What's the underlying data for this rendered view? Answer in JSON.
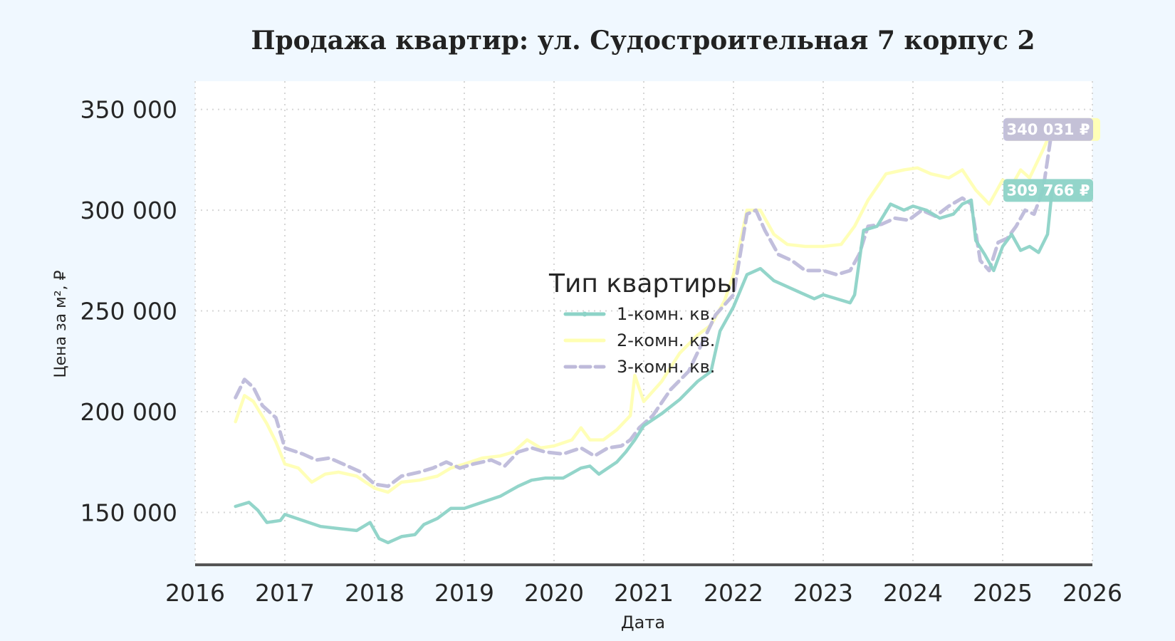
{
  "chart_data": {
    "type": "line",
    "title": "Продажа квартир: ул. Судостроительная 7 корпус 2",
    "xlabel": "Дата",
    "ylabel": "Цена за м², ₽",
    "xlim": [
      2016,
      2026
    ],
    "ylim": [
      124000,
      364000
    ],
    "x_ticks": [
      "2016",
      "2017",
      "2018",
      "2019",
      "2020",
      "2021",
      "2022",
      "2023",
      "2024",
      "2025",
      "2026"
    ],
    "y_ticks": [
      {
        "value": 150000,
        "label": "150 000"
      },
      {
        "value": 200000,
        "label": "200 000"
      },
      {
        "value": 250000,
        "label": "250 000"
      },
      {
        "value": 300000,
        "label": "300 000"
      },
      {
        "value": 350000,
        "label": "350 000"
      }
    ],
    "grid": true,
    "legend": {
      "title": "Тип квартиры",
      "placement": "center"
    },
    "series": [
      {
        "name": "1-комн. кв.",
        "color": "#8dd3c7",
        "dash": "solid",
        "marker": "dot",
        "points": [
          [
            2016.45,
            153000
          ],
          [
            2016.6,
            155000
          ],
          [
            2016.7,
            151000
          ],
          [
            2016.8,
            145000
          ],
          [
            2016.95,
            146000
          ],
          [
            2017.0,
            149000
          ],
          [
            2017.2,
            146000
          ],
          [
            2017.4,
            143000
          ],
          [
            2017.6,
            142000
          ],
          [
            2017.8,
            141000
          ],
          [
            2017.95,
            145000
          ],
          [
            2018.05,
            137000
          ],
          [
            2018.15,
            135000
          ],
          [
            2018.3,
            138000
          ],
          [
            2018.45,
            139000
          ],
          [
            2018.55,
            144000
          ],
          [
            2018.7,
            147000
          ],
          [
            2018.85,
            152000
          ],
          [
            2019.0,
            152000
          ],
          [
            2019.2,
            155000
          ],
          [
            2019.4,
            158000
          ],
          [
            2019.6,
            163000
          ],
          [
            2019.75,
            166000
          ],
          [
            2019.9,
            167000
          ],
          [
            2020.1,
            167000
          ],
          [
            2020.3,
            172000
          ],
          [
            2020.4,
            173000
          ],
          [
            2020.5,
            169000
          ],
          [
            2020.6,
            172000
          ],
          [
            2020.7,
            175000
          ],
          [
            2020.8,
            180000
          ],
          [
            2020.9,
            186000
          ],
          [
            2021.0,
            193000
          ],
          [
            2021.2,
            199000
          ],
          [
            2021.4,
            206000
          ],
          [
            2021.6,
            215000
          ],
          [
            2021.75,
            220000
          ],
          [
            2021.85,
            240000
          ],
          [
            2022.0,
            252000
          ],
          [
            2022.15,
            268000
          ],
          [
            2022.3,
            271000
          ],
          [
            2022.45,
            265000
          ],
          [
            2022.6,
            262000
          ],
          [
            2022.75,
            259000
          ],
          [
            2022.9,
            256000
          ],
          [
            2023.0,
            258000
          ],
          [
            2023.15,
            256000
          ],
          [
            2023.3,
            254000
          ],
          [
            2023.35,
            258000
          ],
          [
            2023.45,
            290000
          ],
          [
            2023.6,
            292000
          ],
          [
            2023.75,
            303000
          ],
          [
            2023.9,
            300000
          ],
          [
            2024.0,
            302000
          ],
          [
            2024.15,
            300000
          ],
          [
            2024.3,
            296000
          ],
          [
            2024.45,
            298000
          ],
          [
            2024.55,
            303000
          ],
          [
            2024.65,
            305000
          ],
          [
            2024.7,
            285000
          ],
          [
            2024.8,
            278000
          ],
          [
            2024.9,
            270000
          ],
          [
            2025.0,
            282000
          ],
          [
            2025.1,
            288000
          ],
          [
            2025.2,
            280000
          ],
          [
            2025.3,
            282000
          ],
          [
            2025.4,
            279000
          ],
          [
            2025.5,
            288000
          ],
          [
            2025.55,
            309766
          ]
        ],
        "last_label": "309 766 ₽"
      },
      {
        "name": "2-комн. кв.",
        "color": "#ffffb3",
        "dash": "solid",
        "marker": "none",
        "points": [
          [
            2016.45,
            195000
          ],
          [
            2016.55,
            208000
          ],
          [
            2016.65,
            205000
          ],
          [
            2016.8,
            194000
          ],
          [
            2016.9,
            185000
          ],
          [
            2017.0,
            174000
          ],
          [
            2017.15,
            172000
          ],
          [
            2017.3,
            165000
          ],
          [
            2017.45,
            169000
          ],
          [
            2017.6,
            170000
          ],
          [
            2017.8,
            168000
          ],
          [
            2018.0,
            162000
          ],
          [
            2018.15,
            160000
          ],
          [
            2018.3,
            165000
          ],
          [
            2018.5,
            166000
          ],
          [
            2018.7,
            168000
          ],
          [
            2018.85,
            172000
          ],
          [
            2019.0,
            174000
          ],
          [
            2019.2,
            177000
          ],
          [
            2019.4,
            178000
          ],
          [
            2019.55,
            180000
          ],
          [
            2019.7,
            186000
          ],
          [
            2019.85,
            182000
          ],
          [
            2020.0,
            183000
          ],
          [
            2020.2,
            186000
          ],
          [
            2020.3,
            192000
          ],
          [
            2020.4,
            186000
          ],
          [
            2020.55,
            186000
          ],
          [
            2020.7,
            191000
          ],
          [
            2020.85,
            198000
          ],
          [
            2020.9,
            218000
          ],
          [
            2021.0,
            205000
          ],
          [
            2021.2,
            215000
          ],
          [
            2021.4,
            229000
          ],
          [
            2021.6,
            238000
          ],
          [
            2021.75,
            243000
          ],
          [
            2021.9,
            255000
          ],
          [
            2022.0,
            268000
          ],
          [
            2022.15,
            300000
          ],
          [
            2022.3,
            300000
          ],
          [
            2022.45,
            288000
          ],
          [
            2022.6,
            283000
          ],
          [
            2022.8,
            282000
          ],
          [
            2023.0,
            282000
          ],
          [
            2023.2,
            283000
          ],
          [
            2023.35,
            292000
          ],
          [
            2023.5,
            305000
          ],
          [
            2023.7,
            318000
          ],
          [
            2023.9,
            320000
          ],
          [
            2024.05,
            321000
          ],
          [
            2024.2,
            318000
          ],
          [
            2024.4,
            316000
          ],
          [
            2024.55,
            320000
          ],
          [
            2024.7,
            310000
          ],
          [
            2024.85,
            303000
          ],
          [
            2025.0,
            315000
          ],
          [
            2025.1,
            312000
          ],
          [
            2025.2,
            320000
          ],
          [
            2025.3,
            316000
          ],
          [
            2025.45,
            330000
          ],
          [
            2025.55,
            340031
          ]
        ],
        "last_label": "340 031 ₽"
      },
      {
        "name": "3-комн. кв.",
        "color": "#bebada",
        "dash": "dashed",
        "marker": "none",
        "points": [
          [
            2016.45,
            207000
          ],
          [
            2016.55,
            216000
          ],
          [
            2016.65,
            212000
          ],
          [
            2016.75,
            203000
          ],
          [
            2016.9,
            197000
          ],
          [
            2017.0,
            182000
          ],
          [
            2017.2,
            179000
          ],
          [
            2017.35,
            176000
          ],
          [
            2017.5,
            177000
          ],
          [
            2017.7,
            173000
          ],
          [
            2017.85,
            170000
          ],
          [
            2018.0,
            164000
          ],
          [
            2018.15,
            163000
          ],
          [
            2018.3,
            168000
          ],
          [
            2018.5,
            170000
          ],
          [
            2018.65,
            172000
          ],
          [
            2018.8,
            175000
          ],
          [
            2018.95,
            172000
          ],
          [
            2019.1,
            174000
          ],
          [
            2019.3,
            176000
          ],
          [
            2019.45,
            173000
          ],
          [
            2019.6,
            180000
          ],
          [
            2019.75,
            182000
          ],
          [
            2019.9,
            180000
          ],
          [
            2020.1,
            179000
          ],
          [
            2020.3,
            182000
          ],
          [
            2020.45,
            178000
          ],
          [
            2020.6,
            182000
          ],
          [
            2020.75,
            183000
          ],
          [
            2020.85,
            186000
          ],
          [
            2020.95,
            192000
          ],
          [
            2021.1,
            198000
          ],
          [
            2021.3,
            211000
          ],
          [
            2021.5,
            220000
          ],
          [
            2021.65,
            234000
          ],
          [
            2021.8,
            248000
          ],
          [
            2022.0,
            258000
          ],
          [
            2022.15,
            298000
          ],
          [
            2022.25,
            300000
          ],
          [
            2022.35,
            290000
          ],
          [
            2022.5,
            278000
          ],
          [
            2022.65,
            275000
          ],
          [
            2022.8,
            270000
          ],
          [
            2023.0,
            270000
          ],
          [
            2023.15,
            268000
          ],
          [
            2023.3,
            270000
          ],
          [
            2023.4,
            278000
          ],
          [
            2023.5,
            292000
          ],
          [
            2023.65,
            293000
          ],
          [
            2023.8,
            296000
          ],
          [
            2023.95,
            295000
          ],
          [
            2024.1,
            300000
          ],
          [
            2024.25,
            297000
          ],
          [
            2024.4,
            302000
          ],
          [
            2024.55,
            306000
          ],
          [
            2024.65,
            303000
          ],
          [
            2024.75,
            275000
          ],
          [
            2024.85,
            270000
          ],
          [
            2024.95,
            284000
          ],
          [
            2025.05,
            286000
          ],
          [
            2025.15,
            292000
          ],
          [
            2025.25,
            300000
          ],
          [
            2025.35,
            298000
          ],
          [
            2025.45,
            310000
          ],
          [
            2025.55,
            340031
          ]
        ],
        "last_label": "340 031 ₽"
      }
    ]
  }
}
